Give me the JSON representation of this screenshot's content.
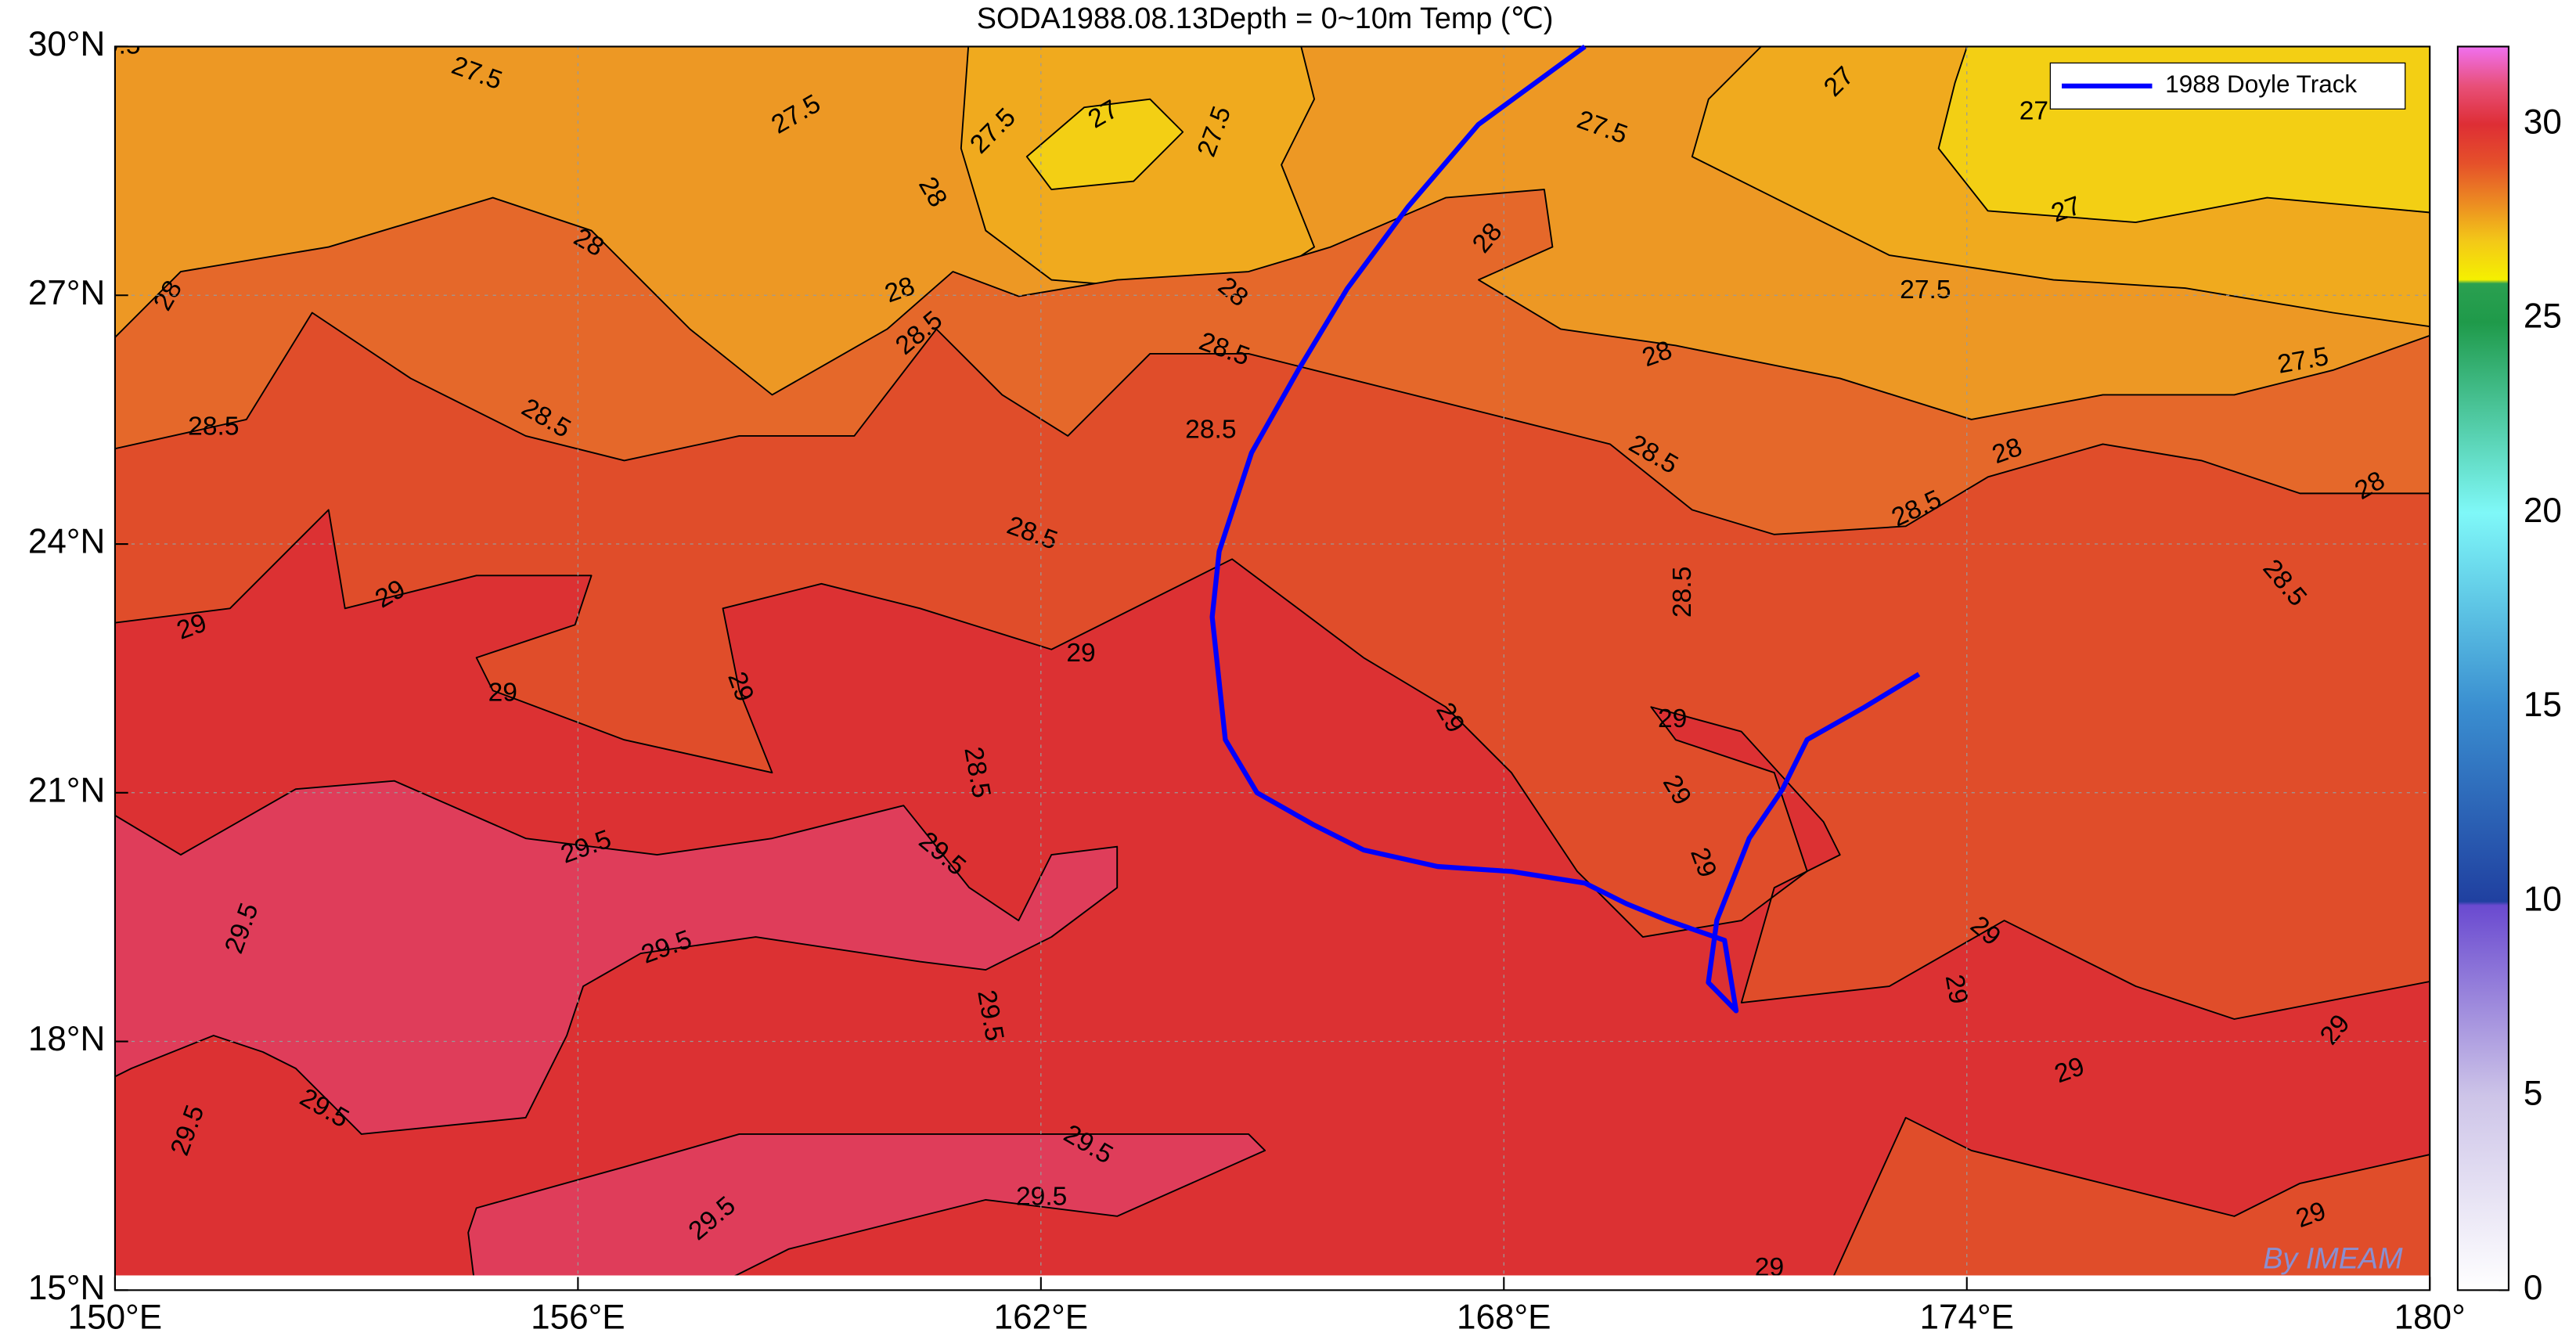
{
  "title": "SODA1988.08.13Depth = 0~10m Temp (℃)",
  "map": {
    "xlim": [
      150,
      180
    ],
    "ylim": [
      15,
      30
    ],
    "xticks": [
      {
        "value": 150,
        "label": "150°E"
      },
      {
        "value": 156,
        "label": "156°E"
      },
      {
        "value": 162,
        "label": "162°E"
      },
      {
        "value": 168,
        "label": "168°E"
      },
      {
        "value": 174,
        "label": "174°E"
      },
      {
        "value": 180,
        "label": "180°"
      }
    ],
    "yticks": [
      {
        "value": 15,
        "label": "15°N"
      },
      {
        "value": 18,
        "label": "18°N"
      },
      {
        "value": 21,
        "label": "21°N"
      },
      {
        "value": 24,
        "label": "24°N"
      },
      {
        "value": 27,
        "label": "27°N"
      },
      {
        "value": 30,
        "label": "30°N"
      }
    ],
    "grid": true
  },
  "colorbar": {
    "clim": [
      0,
      32
    ],
    "ticks": [
      0,
      5,
      10,
      15,
      20,
      25,
      30
    ],
    "colormap": [
      [
        0,
        "#ffffff"
      ],
      [
        5,
        "#cdc4e8"
      ],
      [
        9.9,
        "#6a4ad0"
      ],
      [
        10,
        "#2040a0"
      ],
      [
        15,
        "#3a8ed0"
      ],
      [
        20,
        "#7ff8f8"
      ],
      [
        24.9,
        "#1f9a4a"
      ],
      [
        25.9,
        "#2aa050"
      ],
      [
        26,
        "#f5f000"
      ],
      [
        27,
        "#f3c818"
      ],
      [
        28,
        "#ec8a22"
      ],
      [
        29,
        "#e5502a"
      ],
      [
        30,
        "#de2e35"
      ],
      [
        31,
        "#e8507a"
      ],
      [
        32,
        "#f070f0"
      ]
    ]
  },
  "track": {
    "name": "1988 Doyle Track",
    "color": "#0000ff",
    "lon": [
      169.05,
      167.67,
      166.76,
      165.97,
      165.33,
      164.73,
      164.31,
      164.22,
      164.39,
      164.8,
      165.54,
      166.18,
      167.14,
      168.1,
      169.05,
      169.59,
      170.12,
      170.86,
      171.01,
      170.65,
      170.76,
      171.18,
      171.61,
      171.93,
      172.67,
      173.38
    ],
    "lat": [
      30.0,
      29.06,
      28.07,
      27.08,
      26.09,
      25.1,
      23.91,
      23.12,
      21.64,
      21.0,
      20.61,
      20.31,
      20.11,
      20.05,
      19.91,
      19.66,
      19.46,
      19.22,
      18.37,
      18.71,
      19.46,
      20.45,
      21.04,
      21.64,
      22.03,
      22.43
    ]
  },
  "contour_labels": [
    27.5,
    27.5,
    27.5,
    27,
    27.5,
    28,
    28,
    28,
    28,
    28.5,
    28,
    28.5,
    28,
    27.5,
    27,
    27,
    27,
    27.5,
    28,
    27.5,
    28,
    28,
    28.5,
    28.5,
    28.5,
    28.5,
    28.5,
    28.5,
    28.5,
    28.5,
    29,
    29,
    29,
    29,
    29,
    29,
    29,
    29,
    29,
    29,
    29,
    29,
    29,
    29,
    29,
    28.5,
    29.5,
    29.5,
    29.5,
    29.5,
    29.5,
    29.5,
    29.5,
    29.5,
    29.5,
    29.5,
    29.5
  ],
  "watermark": "By IMEAM"
}
